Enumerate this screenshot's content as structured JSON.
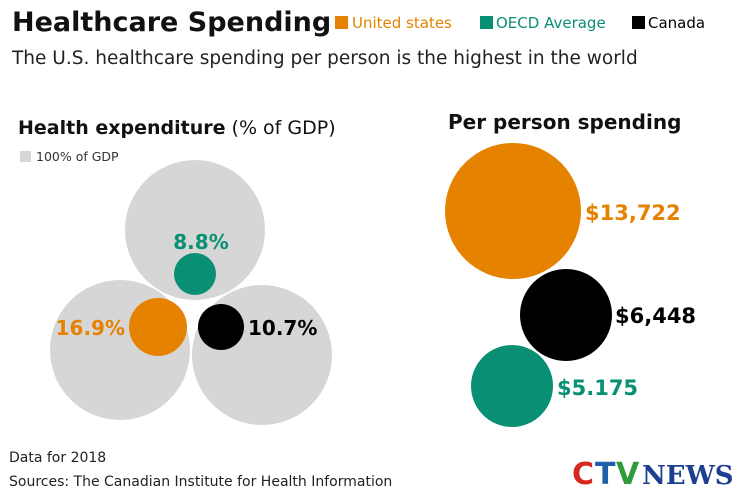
{
  "header": {
    "title": "Healthcare Spending",
    "subtitle": "The U.S. healthcare spending per person is the highest in the world"
  },
  "legend": [
    {
      "label": "United states",
      "color": "#e58200"
    },
    {
      "label": "OECD Average",
      "color": "#098f74"
    },
    {
      "label": "Canada",
      "color": "#000000"
    }
  ],
  "left_panel": {
    "title_bold": "Health expenditure",
    "title_light": "(% of GDP)",
    "reference_label": "100% of GDP",
    "reference_color": "#d6d6d6"
  },
  "right_panel": {
    "title": "Per person spending"
  },
  "footer": {
    "data_note": "Data for 2018",
    "sources": "Sources: The Canadian Institute for Health Information"
  },
  "logo": {
    "letter_c": "C",
    "letter_t": "T",
    "letter_v": "V",
    "word": "NEWS",
    "colors": {
      "c": "#d8281d",
      "t": "#1d5fa8",
      "v": "#2e9b3d",
      "word": "#1d3f8f"
    }
  },
  "chart_data": [
    {
      "type": "bubble",
      "title": "Health expenditure (% of GDP)",
      "unit": "% of GDP",
      "reference_value": 100,
      "series": [
        {
          "name": "United states",
          "value": 16.9,
          "label": "16.9%",
          "color": "#e58200"
        },
        {
          "name": "OECD Average",
          "value": 8.8,
          "label": "8.8%",
          "color": "#098f74"
        },
        {
          "name": "Canada",
          "value": 10.7,
          "label": "10.7%",
          "color": "#000000"
        }
      ]
    },
    {
      "type": "bubble",
      "title": "Per person spending",
      "series": [
        {
          "name": "United states",
          "value": 13722,
          "label": "$13,722",
          "color": "#e58200"
        },
        {
          "name": "Canada",
          "value": 6448,
          "label": "$6,448",
          "color": "#000000"
        },
        {
          "name": "OECD Average",
          "value": 5175,
          "label": "$5.175",
          "color": "#098f74"
        }
      ]
    }
  ]
}
